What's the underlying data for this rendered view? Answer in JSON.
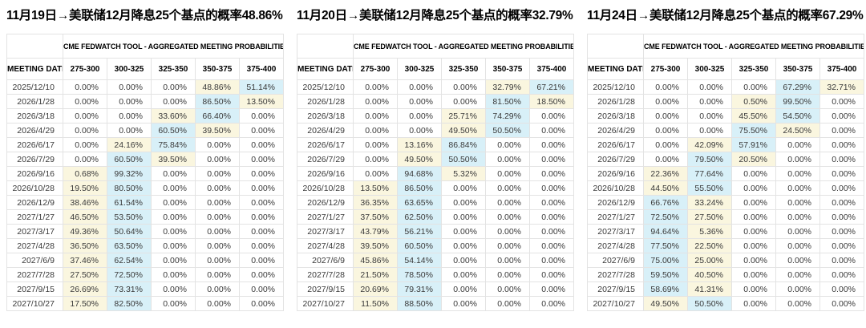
{
  "colors": {
    "highlight_blue": "#d8f0f8",
    "highlight_yellow": "#faf6df",
    "border": "#e3e3e3",
    "title_text": "#000000",
    "cell_text": "#3a3a3a"
  },
  "tables": [
    {
      "title": "11月19日→美联储12月降息25个基点的概率48.86%",
      "tool_header": "CME FEDWATCH TOOL - AGGREGATED MEETING PROBABILITIES",
      "columns": [
        "MEETING DATE",
        "275-300",
        "300-325",
        "325-350",
        "350-375",
        "375-400"
      ],
      "rows": [
        {
          "date": "2025/12/10",
          "values": [
            "0.00%",
            "0.00%",
            "0.00%",
            "48.86%",
            "51.14%"
          ],
          "highlights": [
            "",
            "",
            "",
            "yellow",
            "blue"
          ]
        },
        {
          "date": "2026/1/28",
          "values": [
            "0.00%",
            "0.00%",
            "0.00%",
            "86.50%",
            "13.50%"
          ],
          "highlights": [
            "",
            "",
            "",
            "blue",
            "yellow"
          ]
        },
        {
          "date": "2026/3/18",
          "values": [
            "0.00%",
            "0.00%",
            "33.60%",
            "66.40%",
            "0.00%"
          ],
          "highlights": [
            "",
            "",
            "yellow",
            "blue",
            ""
          ]
        },
        {
          "date": "2026/4/29",
          "values": [
            "0.00%",
            "0.00%",
            "60.50%",
            "39.50%",
            "0.00%"
          ],
          "highlights": [
            "",
            "",
            "blue",
            "yellow",
            ""
          ]
        },
        {
          "date": "2026/6/17",
          "values": [
            "0.00%",
            "24.16%",
            "75.84%",
            "0.00%",
            "0.00%"
          ],
          "highlights": [
            "",
            "yellow",
            "blue",
            "",
            ""
          ]
        },
        {
          "date": "2026/7/29",
          "values": [
            "0.00%",
            "60.50%",
            "39.50%",
            "0.00%",
            "0.00%"
          ],
          "highlights": [
            "",
            "blue",
            "yellow",
            "",
            ""
          ]
        },
        {
          "date": "2026/9/16",
          "values": [
            "0.68%",
            "99.32%",
            "0.00%",
            "0.00%",
            "0.00%"
          ],
          "highlights": [
            "yellow",
            "blue",
            "",
            "",
            ""
          ]
        },
        {
          "date": "2026/10/28",
          "values": [
            "19.50%",
            "80.50%",
            "0.00%",
            "0.00%",
            "0.00%"
          ],
          "highlights": [
            "yellow",
            "blue",
            "",
            "",
            ""
          ]
        },
        {
          "date": "2026/12/9",
          "values": [
            "38.46%",
            "61.54%",
            "0.00%",
            "0.00%",
            "0.00%"
          ],
          "highlights": [
            "yellow",
            "blue",
            "",
            "",
            ""
          ]
        },
        {
          "date": "2027/1/27",
          "values": [
            "46.50%",
            "53.50%",
            "0.00%",
            "0.00%",
            "0.00%"
          ],
          "highlights": [
            "yellow",
            "blue",
            "",
            "",
            ""
          ]
        },
        {
          "date": "2027/3/17",
          "values": [
            "49.36%",
            "50.64%",
            "0.00%",
            "0.00%",
            "0.00%"
          ],
          "highlights": [
            "yellow",
            "blue",
            "",
            "",
            ""
          ]
        },
        {
          "date": "2027/4/28",
          "values": [
            "36.50%",
            "63.50%",
            "0.00%",
            "0.00%",
            "0.00%"
          ],
          "highlights": [
            "yellow",
            "blue",
            "",
            "",
            ""
          ]
        },
        {
          "date": "2027/6/9",
          "values": [
            "37.46%",
            "62.54%",
            "0.00%",
            "0.00%",
            "0.00%"
          ],
          "highlights": [
            "yellow",
            "blue",
            "",
            "",
            ""
          ]
        },
        {
          "date": "2027/7/28",
          "values": [
            "27.50%",
            "72.50%",
            "0.00%",
            "0.00%",
            "0.00%"
          ],
          "highlights": [
            "yellow",
            "blue",
            "",
            "",
            ""
          ]
        },
        {
          "date": "2027/9/15",
          "values": [
            "26.69%",
            "73.31%",
            "0.00%",
            "0.00%",
            "0.00%"
          ],
          "highlights": [
            "yellow",
            "blue",
            "",
            "",
            ""
          ]
        },
        {
          "date": "2027/10/27",
          "values": [
            "17.50%",
            "82.50%",
            "0.00%",
            "0.00%",
            "0.00%"
          ],
          "highlights": [
            "yellow",
            "blue",
            "",
            "",
            ""
          ]
        }
      ]
    },
    {
      "title": "11月20日→美联储12月降息25个基点的概率32.79%",
      "tool_header": "CME FEDWATCH TOOL - AGGREGATED MEETING PROBABILITIES",
      "columns": [
        "MEETING DATE",
        "275-300",
        "300-325",
        "325-350",
        "350-375",
        "375-400"
      ],
      "rows": [
        {
          "date": "2025/12/10",
          "values": [
            "0.00%",
            "0.00%",
            "0.00%",
            "32.79%",
            "67.21%"
          ],
          "highlights": [
            "",
            "",
            "",
            "yellow",
            "blue"
          ]
        },
        {
          "date": "2026/1/28",
          "values": [
            "0.00%",
            "0.00%",
            "0.00%",
            "81.50%",
            "18.50%"
          ],
          "highlights": [
            "",
            "",
            "",
            "blue",
            "yellow"
          ]
        },
        {
          "date": "2026/3/18",
          "values": [
            "0.00%",
            "0.00%",
            "25.71%",
            "74.29%",
            "0.00%"
          ],
          "highlights": [
            "",
            "",
            "yellow",
            "blue",
            ""
          ]
        },
        {
          "date": "2026/4/29",
          "values": [
            "0.00%",
            "0.00%",
            "49.50%",
            "50.50%",
            "0.00%"
          ],
          "highlights": [
            "",
            "",
            "yellow",
            "blue",
            ""
          ]
        },
        {
          "date": "2026/6/17",
          "values": [
            "0.00%",
            "13.16%",
            "86.84%",
            "0.00%",
            "0.00%"
          ],
          "highlights": [
            "",
            "yellow",
            "blue",
            "",
            ""
          ]
        },
        {
          "date": "2026/7/29",
          "values": [
            "0.00%",
            "49.50%",
            "50.50%",
            "0.00%",
            "0.00%"
          ],
          "highlights": [
            "",
            "yellow",
            "blue",
            "",
            ""
          ]
        },
        {
          "date": "2026/9/16",
          "values": [
            "0.00%",
            "94.68%",
            "5.32%",
            "0.00%",
            "0.00%"
          ],
          "highlights": [
            "",
            "blue",
            "yellow",
            "",
            ""
          ]
        },
        {
          "date": "2026/10/28",
          "values": [
            "13.50%",
            "86.50%",
            "0.00%",
            "0.00%",
            "0.00%"
          ],
          "highlights": [
            "yellow",
            "blue",
            "",
            "",
            ""
          ]
        },
        {
          "date": "2026/12/9",
          "values": [
            "36.35%",
            "63.65%",
            "0.00%",
            "0.00%",
            "0.00%"
          ],
          "highlights": [
            "yellow",
            "blue",
            "",
            "",
            ""
          ]
        },
        {
          "date": "2027/1/27",
          "values": [
            "37.50%",
            "62.50%",
            "0.00%",
            "0.00%",
            "0.00%"
          ],
          "highlights": [
            "yellow",
            "blue",
            "",
            "",
            ""
          ]
        },
        {
          "date": "2027/3/17",
          "values": [
            "43.79%",
            "56.21%",
            "0.00%",
            "0.00%",
            "0.00%"
          ],
          "highlights": [
            "yellow",
            "blue",
            "",
            "",
            ""
          ]
        },
        {
          "date": "2027/4/28",
          "values": [
            "39.50%",
            "60.50%",
            "0.00%",
            "0.00%",
            "0.00%"
          ],
          "highlights": [
            "yellow",
            "blue",
            "",
            "",
            ""
          ]
        },
        {
          "date": "2027/6/9",
          "values": [
            "45.86%",
            "54.14%",
            "0.00%",
            "0.00%",
            "0.00%"
          ],
          "highlights": [
            "yellow",
            "blue",
            "",
            "",
            ""
          ]
        },
        {
          "date": "2027/7/28",
          "values": [
            "21.50%",
            "78.50%",
            "0.00%",
            "0.00%",
            "0.00%"
          ],
          "highlights": [
            "yellow",
            "blue",
            "",
            "",
            ""
          ]
        },
        {
          "date": "2027/9/15",
          "values": [
            "20.69%",
            "79.31%",
            "0.00%",
            "0.00%",
            "0.00%"
          ],
          "highlights": [
            "yellow",
            "blue",
            "",
            "",
            ""
          ]
        },
        {
          "date": "2027/10/27",
          "values": [
            "11.50%",
            "88.50%",
            "0.00%",
            "0.00%",
            "0.00%"
          ],
          "highlights": [
            "yellow",
            "blue",
            "",
            "",
            ""
          ]
        }
      ]
    },
    {
      "title": "11月24日→美联储12月降息25个基点的概率67.29%",
      "tool_header": "CME FEDWATCH TOOL - AGGREGATED MEETING PROBABILITIES",
      "columns": [
        "MEETING DATE",
        "275-300",
        "300-325",
        "325-350",
        "350-375",
        "375-400"
      ],
      "rows": [
        {
          "date": "2025/12/10",
          "values": [
            "0.00%",
            "0.00%",
            "0.00%",
            "67.29%",
            "32.71%"
          ],
          "highlights": [
            "",
            "",
            "",
            "blue",
            "yellow"
          ]
        },
        {
          "date": "2026/1/28",
          "values": [
            "0.00%",
            "0.00%",
            "0.50%",
            "99.50%",
            "0.00%"
          ],
          "highlights": [
            "",
            "",
            "yellow",
            "blue",
            ""
          ]
        },
        {
          "date": "2026/3/18",
          "values": [
            "0.00%",
            "0.00%",
            "45.50%",
            "54.50%",
            "0.00%"
          ],
          "highlights": [
            "",
            "",
            "yellow",
            "blue",
            ""
          ]
        },
        {
          "date": "2026/4/29",
          "values": [
            "0.00%",
            "0.00%",
            "75.50%",
            "24.50%",
            "0.00%"
          ],
          "highlights": [
            "",
            "",
            "blue",
            "yellow",
            ""
          ]
        },
        {
          "date": "2026/6/17",
          "values": [
            "0.00%",
            "42.09%",
            "57.91%",
            "0.00%",
            "0.00%"
          ],
          "highlights": [
            "",
            "yellow",
            "blue",
            "",
            ""
          ]
        },
        {
          "date": "2026/7/29",
          "values": [
            "0.00%",
            "79.50%",
            "20.50%",
            "0.00%",
            "0.00%"
          ],
          "highlights": [
            "",
            "blue",
            "yellow",
            "",
            ""
          ]
        },
        {
          "date": "2026/9/16",
          "values": [
            "22.36%",
            "77.64%",
            "0.00%",
            "0.00%",
            "0.00%"
          ],
          "highlights": [
            "yellow",
            "blue",
            "",
            "",
            ""
          ]
        },
        {
          "date": "2026/10/28",
          "values": [
            "44.50%",
            "55.50%",
            "0.00%",
            "0.00%",
            "0.00%"
          ],
          "highlights": [
            "yellow",
            "blue",
            "",
            "",
            ""
          ]
        },
        {
          "date": "2026/12/9",
          "values": [
            "66.76%",
            "33.24%",
            "0.00%",
            "0.00%",
            "0.00%"
          ],
          "highlights": [
            "blue",
            "yellow",
            "",
            "",
            ""
          ]
        },
        {
          "date": "2027/1/27",
          "values": [
            "72.50%",
            "27.50%",
            "0.00%",
            "0.00%",
            "0.00%"
          ],
          "highlights": [
            "blue",
            "yellow",
            "",
            "",
            ""
          ]
        },
        {
          "date": "2027/3/17",
          "values": [
            "94.64%",
            "5.36%",
            "0.00%",
            "0.00%",
            "0.00%"
          ],
          "highlights": [
            "blue",
            "yellow",
            "",
            "",
            ""
          ]
        },
        {
          "date": "2027/4/28",
          "values": [
            "77.50%",
            "22.50%",
            "0.00%",
            "0.00%",
            "0.00%"
          ],
          "highlights": [
            "blue",
            "yellow",
            "",
            "",
            ""
          ]
        },
        {
          "date": "2027/6/9",
          "values": [
            "75.00%",
            "25.00%",
            "0.00%",
            "0.00%",
            "0.00%"
          ],
          "highlights": [
            "blue",
            "yellow",
            "",
            "",
            ""
          ]
        },
        {
          "date": "2027/7/28",
          "values": [
            "59.50%",
            "40.50%",
            "0.00%",
            "0.00%",
            "0.00%"
          ],
          "highlights": [
            "blue",
            "yellow",
            "",
            "",
            ""
          ]
        },
        {
          "date": "2027/9/15",
          "values": [
            "58.69%",
            "41.31%",
            "0.00%",
            "0.00%",
            "0.00%"
          ],
          "highlights": [
            "blue",
            "yellow",
            "",
            "",
            ""
          ]
        },
        {
          "date": "2027/10/27",
          "values": [
            "49.50%",
            "50.50%",
            "0.00%",
            "0.00%",
            "0.00%"
          ],
          "highlights": [
            "yellow",
            "blue",
            "",
            "",
            ""
          ]
        }
      ]
    }
  ]
}
